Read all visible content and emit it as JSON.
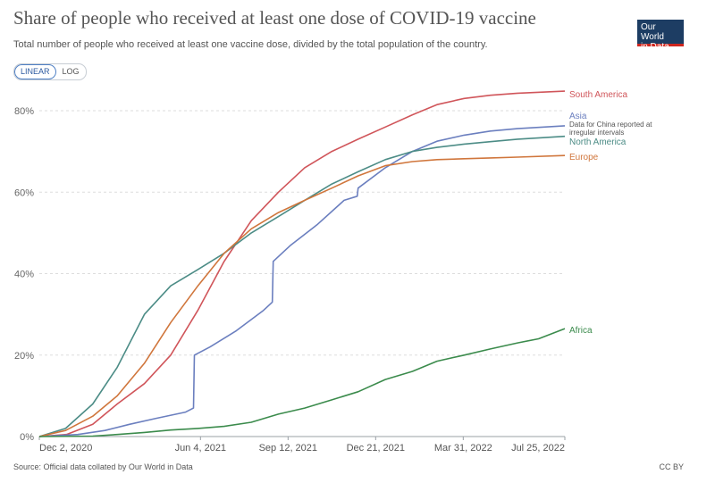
{
  "title": "Share of people who received at least one dose of COVID-19 vaccine",
  "subtitle": "Total number of people who received at least one vaccine dose, divided by the total population of the country.",
  "logo": {
    "line1": "Our World",
    "line2": "in Data",
    "bg": "#1d3d63",
    "accent": "#ce261e"
  },
  "toggle": {
    "linear": "LINEAR",
    "log": "LOG",
    "selected": "LINEAR"
  },
  "footer": {
    "source": "Source: Official data collated by Our World in Data",
    "license": "CC BY"
  },
  "chart_data": {
    "type": "line",
    "title": "Share of people who received at least one dose of COVID-19 vaccine",
    "x_ticks": [
      "Dec 2, 2020",
      "Jun 4, 2021",
      "Sep 12, 2021",
      "Dec 21, 2021",
      "Mar 31, 2022",
      "Jul 25, 2022"
    ],
    "x_range": [
      "2020-12-02",
      "2022-07-25"
    ],
    "y_ticks": [
      "0%",
      "20%",
      "40%",
      "60%",
      "80%"
    ],
    "ylim": [
      0,
      80
    ],
    "grid": true,
    "legend": "inline labels at right end of lines",
    "note_asia": "Data for China reported at irregular intervals",
    "series": [
      {
        "name": "South America",
        "color": "#d0555a",
        "points": [
          [
            "2020-12-02",
            0
          ],
          [
            "2021-01-02",
            0.5
          ],
          [
            "2021-02-01",
            3
          ],
          [
            "2021-03-01",
            8
          ],
          [
            "2021-04-01",
            13
          ],
          [
            "2021-05-01",
            20
          ],
          [
            "2021-06-01",
            31
          ],
          [
            "2021-07-01",
            43
          ],
          [
            "2021-08-01",
            53
          ],
          [
            "2021-09-01",
            60
          ],
          [
            "2021-10-01",
            66
          ],
          [
            "2021-11-01",
            70
          ],
          [
            "2021-12-01",
            73
          ],
          [
            "2022-01-01",
            76
          ],
          [
            "2022-02-01",
            79
          ],
          [
            "2022-03-01",
            81.5
          ],
          [
            "2022-04-01",
            83
          ],
          [
            "2022-05-01",
            83.8
          ],
          [
            "2022-06-01",
            84.3
          ],
          [
            "2022-07-25",
            84.8
          ]
        ]
      },
      {
        "name": "Asia",
        "color": "#6b7fbf",
        "points": [
          [
            "2020-12-02",
            0
          ],
          [
            "2021-01-15",
            0.5
          ],
          [
            "2021-02-15",
            1.5
          ],
          [
            "2021-03-15",
            3
          ],
          [
            "2021-04-15",
            4.5
          ],
          [
            "2021-05-18",
            6
          ],
          [
            "2021-05-27",
            7
          ],
          [
            "2021-05-28",
            20
          ],
          [
            "2021-06-15",
            22
          ],
          [
            "2021-07-15",
            26
          ],
          [
            "2021-08-15",
            31
          ],
          [
            "2021-08-25",
            33
          ],
          [
            "2021-08-26",
            43
          ],
          [
            "2021-09-15",
            47
          ],
          [
            "2021-10-15",
            52
          ],
          [
            "2021-11-15",
            58
          ],
          [
            "2021-11-30",
            59
          ],
          [
            "2021-12-01",
            61
          ],
          [
            "2022-01-01",
            66
          ],
          [
            "2022-02-01",
            70
          ],
          [
            "2022-03-01",
            72.5
          ],
          [
            "2022-04-01",
            74
          ],
          [
            "2022-05-01",
            75
          ],
          [
            "2022-06-01",
            75.6
          ],
          [
            "2022-07-25",
            76.3
          ]
        ]
      },
      {
        "name": "North America",
        "color": "#4c8c86",
        "points": [
          [
            "2020-12-02",
            0
          ],
          [
            "2021-01-01",
            2
          ],
          [
            "2021-02-01",
            8
          ],
          [
            "2021-03-01",
            17
          ],
          [
            "2021-04-01",
            30
          ],
          [
            "2021-05-01",
            37
          ],
          [
            "2021-06-01",
            41
          ],
          [
            "2021-07-01",
            45
          ],
          [
            "2021-08-01",
            50
          ],
          [
            "2021-09-01",
            54
          ],
          [
            "2021-10-01",
            58
          ],
          [
            "2021-11-01",
            62
          ],
          [
            "2021-12-01",
            65
          ],
          [
            "2022-01-01",
            68
          ],
          [
            "2022-02-01",
            70
          ],
          [
            "2022-03-01",
            71
          ],
          [
            "2022-04-01",
            71.8
          ],
          [
            "2022-05-01",
            72.4
          ],
          [
            "2022-06-01",
            73
          ],
          [
            "2022-07-25",
            73.7
          ]
        ]
      },
      {
        "name": "Europe",
        "color": "#d0763c",
        "points": [
          [
            "2020-12-02",
            0
          ],
          [
            "2021-01-01",
            1.5
          ],
          [
            "2021-02-01",
            5
          ],
          [
            "2021-03-01",
            10
          ],
          [
            "2021-04-01",
            18
          ],
          [
            "2021-05-01",
            28
          ],
          [
            "2021-06-01",
            37
          ],
          [
            "2021-07-01",
            45
          ],
          [
            "2021-08-01",
            51
          ],
          [
            "2021-09-01",
            55
          ],
          [
            "2021-10-01",
            58
          ],
          [
            "2021-11-01",
            61
          ],
          [
            "2021-12-01",
            64
          ],
          [
            "2022-01-01",
            66.5
          ],
          [
            "2022-02-01",
            67.5
          ],
          [
            "2022-03-01",
            68
          ],
          [
            "2022-04-01",
            68.2
          ],
          [
            "2022-05-01",
            68.4
          ],
          [
            "2022-06-01",
            68.6
          ],
          [
            "2022-07-25",
            69
          ]
        ]
      },
      {
        "name": "Africa",
        "color": "#3b8b4c",
        "points": [
          [
            "2020-12-02",
            0
          ],
          [
            "2021-02-01",
            0.1
          ],
          [
            "2021-03-01",
            0.5
          ],
          [
            "2021-04-01",
            1
          ],
          [
            "2021-05-01",
            1.6
          ],
          [
            "2021-06-01",
            2
          ],
          [
            "2021-07-01",
            2.5
          ],
          [
            "2021-08-01",
            3.5
          ],
          [
            "2021-09-01",
            5.5
          ],
          [
            "2021-10-01",
            7
          ],
          [
            "2021-11-01",
            9
          ],
          [
            "2021-12-01",
            11
          ],
          [
            "2022-01-01",
            14
          ],
          [
            "2022-02-01",
            16
          ],
          [
            "2022-03-01",
            18.5
          ],
          [
            "2022-04-01",
            20
          ],
          [
            "2022-05-01",
            21.5
          ],
          [
            "2022-06-01",
            23
          ],
          [
            "2022-06-25",
            24
          ],
          [
            "2022-07-25",
            26.5
          ]
        ]
      }
    ]
  }
}
